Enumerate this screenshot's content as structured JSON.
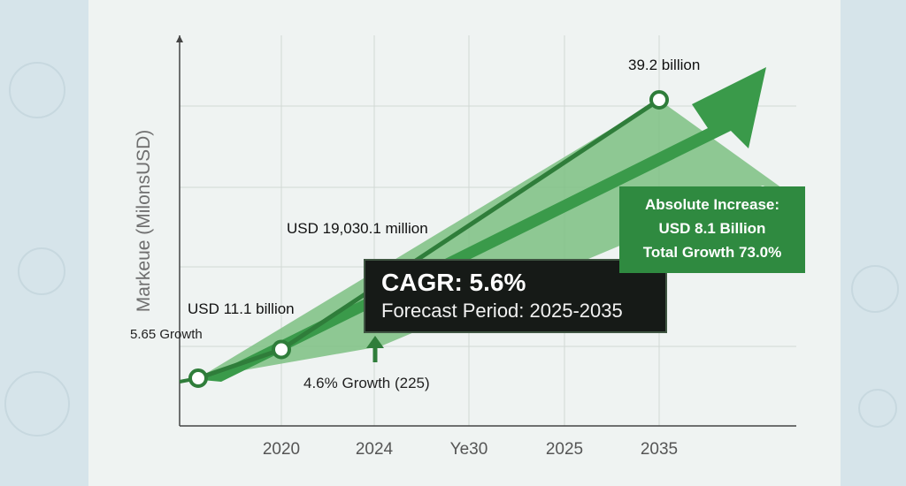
{
  "chart_data": {
    "type": "line",
    "ylabel": "Markeue (MilonsUSD)",
    "xlabel": "",
    "title": "",
    "categories": [
      "2020",
      "2024",
      "Ye30",
      "2025",
      "2035"
    ],
    "grid": true,
    "points": [
      {
        "x": "start",
        "y": 11.1
      },
      {
        "x": "2020",
        "y": 14.0
      },
      {
        "x": "2035",
        "y": 39.2
      }
    ],
    "annotations": {
      "peak_label": "39.2 billion",
      "mid_label": "USD 19,030.1 million",
      "low_label": "USD 11.1 billion",
      "left_growth": "5.65 Growth",
      "bottom_growth": "4.6% Growth (225)"
    },
    "cagr": {
      "title": "CAGR: 5.6%",
      "subtitle": "Forecast Period: 2025-2035"
    },
    "increase": {
      "line1": "Absolute Increase:",
      "line2": "USD 8.1 Billion",
      "line3": "Total Growth 73.0%"
    }
  },
  "colors": {
    "line": "#2f7d3a",
    "arrow": "#3a9a4a",
    "band": "#7cbf82",
    "grid": "#d2d8d4"
  }
}
